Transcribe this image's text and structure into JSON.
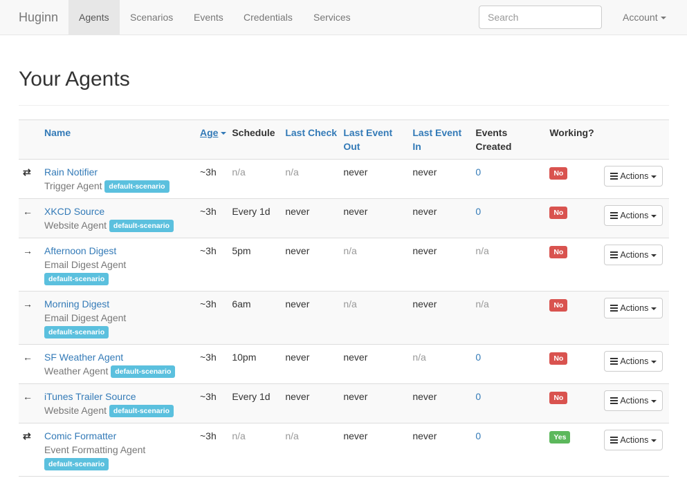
{
  "nav": {
    "brand": "Huginn",
    "items": [
      {
        "label": "Agents",
        "active": true
      },
      {
        "label": "Scenarios"
      },
      {
        "label": "Events"
      },
      {
        "label": "Credentials"
      },
      {
        "label": "Services"
      }
    ],
    "search_placeholder": "Search",
    "account": "Account"
  },
  "page": {
    "title": "Your Agents"
  },
  "table": {
    "headers": {
      "name": "Name",
      "age": "Age",
      "schedule": "Schedule",
      "last_check": "Last Check",
      "last_event_out": "Last Event Out",
      "last_event_in": "Last Event In",
      "events_created": "Events Created",
      "working": "Working?"
    },
    "actions_label": "Actions",
    "colors": {
      "link": "#337ab7",
      "tag": "#5bc0de",
      "no": "#d9534f",
      "yes": "#5cb85c"
    },
    "rows": [
      {
        "icon": "exchange-icon",
        "name": "Rain Notifier",
        "type": "Trigger Agent",
        "tag": "default-scenario",
        "age": "~3h",
        "schedule": "n/a",
        "last_check": "n/a",
        "last_event_out": "never",
        "last_event_in": "never",
        "events_created": "0",
        "working": "No"
      },
      {
        "icon": "arrow-left-icon",
        "name": "XKCD Source",
        "type": "Website Agent",
        "tag": "default-scenario",
        "age": "~3h",
        "schedule": "Every 1d",
        "last_check": "never",
        "last_event_out": "never",
        "last_event_in": "never",
        "events_created": "0",
        "working": "No"
      },
      {
        "icon": "arrow-right-icon",
        "name": "Afternoon Digest",
        "type": "Email Digest Agent",
        "tag": "default-scenario",
        "tag_wrap": true,
        "age": "~3h",
        "schedule": "5pm",
        "last_check": "never",
        "last_event_out": "n/a",
        "last_event_in": "never",
        "events_created": "n/a",
        "working": "No"
      },
      {
        "icon": "arrow-right-icon",
        "name": "Morning Digest",
        "type": "Email Digest Agent",
        "tag": "default-scenario",
        "tag_wrap": true,
        "age": "~3h",
        "schedule": "6am",
        "last_check": "never",
        "last_event_out": "n/a",
        "last_event_in": "never",
        "events_created": "n/a",
        "working": "No"
      },
      {
        "icon": "arrow-left-icon",
        "name": "SF Weather Agent",
        "type": "Weather Agent",
        "tag": "default-scenario",
        "age": "~3h",
        "schedule": "10pm",
        "last_check": "never",
        "last_event_out": "never",
        "last_event_in": "n/a",
        "events_created": "0",
        "working": "No"
      },
      {
        "icon": "arrow-left-icon",
        "name": "iTunes Trailer Source",
        "type": "Website Agent",
        "tag": "default-scenario",
        "age": "~3h",
        "schedule": "Every 1d",
        "last_check": "never",
        "last_event_out": "never",
        "last_event_in": "never",
        "events_created": "0",
        "working": "No"
      },
      {
        "icon": "exchange-icon",
        "name": "Comic Formatter",
        "type": "Event Formatting Agent",
        "tag": "default-scenario",
        "tag_wrap": true,
        "age": "~3h",
        "schedule": "n/a",
        "last_check": "n/a",
        "last_event_out": "never",
        "last_event_in": "never",
        "events_created": "0",
        "working": "Yes"
      }
    ]
  }
}
